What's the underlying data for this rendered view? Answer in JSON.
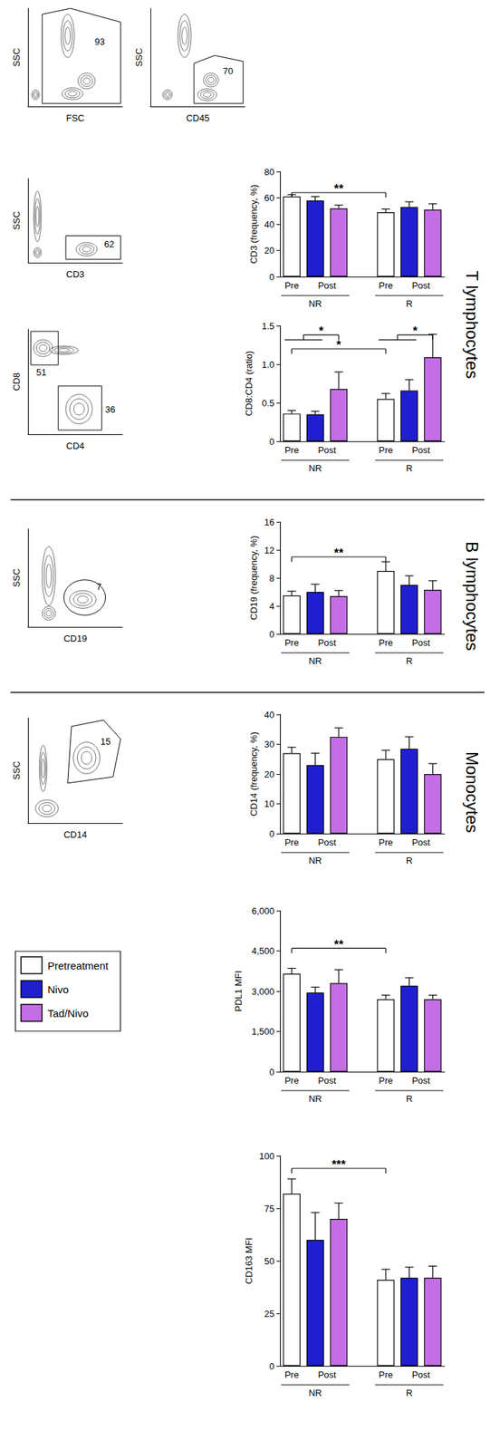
{
  "chart_data": [
    {
      "type": "contour",
      "x_label": "FSC",
      "y_label": "SSC",
      "xlim": [
        0,
        100
      ],
      "ylim": [
        0,
        100
      ],
      "tick_labels": false,
      "populations": [
        {
          "center": [
            42,
            72
          ],
          "size": [
            14,
            44
          ]
        },
        {
          "center": [
            47,
            13
          ],
          "size": [
            22,
            12
          ]
        },
        {
          "center": [
            62,
            26
          ],
          "size": [
            18,
            16
          ]
        },
        {
          "center": [
            8,
            12
          ],
          "size": [
            8,
            10
          ]
        }
      ],
      "gates": [
        {
          "points": [
            [
              15,
              3
            ],
            [
              15,
              94
            ],
            [
              45,
              100
            ],
            [
              98,
              86
            ],
            [
              98,
              3
            ]
          ],
          "label": "93",
          "label_at": [
            76,
            66
          ]
        }
      ]
    },
    {
      "type": "contour",
      "x_label": "CD45",
      "y_label": "SSC",
      "xlim": [
        0,
        100
      ],
      "ylim": [
        0,
        100
      ],
      "tick_labels": false,
      "populations": [
        {
          "center": [
            36,
            72
          ],
          "size": [
            14,
            44
          ]
        },
        {
          "center": [
            60,
            12
          ],
          "size": [
            20,
            12
          ]
        },
        {
          "center": [
            64,
            27
          ],
          "size": [
            16,
            14
          ]
        },
        {
          "center": [
            18,
            12
          ],
          "size": [
            10,
            10
          ]
        }
      ],
      "gates": [
        {
          "points": [
            [
              46,
              3
            ],
            [
              46,
              44
            ],
            [
              68,
              52
            ],
            [
              98,
              46
            ],
            [
              98,
              3
            ]
          ],
          "label": "70",
          "label_at": [
            82,
            36
          ]
        }
      ]
    },
    {
      "type": "contour",
      "section": "T lymphocytes",
      "x_label": "CD3",
      "y_label": "SSC",
      "xlim": [
        0,
        100
      ],
      "ylim": [
        0,
        100
      ],
      "tick_labels": false,
      "populations": [
        {
          "center": [
            10,
            55
          ],
          "size": [
            8,
            60
          ]
        },
        {
          "center": [
            10,
            12
          ],
          "size": [
            8,
            12
          ]
        },
        {
          "center": [
            62,
            16
          ],
          "size": [
            22,
            16
          ]
        }
      ],
      "gates": [
        {
          "points": [
            [
              40,
              4
            ],
            [
              40,
              32
            ],
            [
              98,
              32
            ],
            [
              98,
              4
            ]
          ],
          "label": "62",
          "label_at": [
            86,
            22
          ]
        }
      ]
    },
    {
      "type": "bar",
      "section": "T lymphocytes",
      "y_label": "CD3 (frequency, %)",
      "ylim": [
        0,
        80
      ],
      "yticks": [
        0,
        20,
        40,
        60,
        80
      ],
      "groups": [
        {
          "name": "NR",
          "labels": [
            "Pre",
            "Post"
          ]
        },
        {
          "name": "R",
          "labels": [
            "Pre",
            "Post"
          ]
        }
      ],
      "series": [
        {
          "name": "Pretreatment",
          "color": "#ffffff",
          "values": [
            61,
            49
          ],
          "errors": [
            1.5,
            2.5
          ]
        },
        {
          "name": "Nivo",
          "color": "#1f1fd1",
          "values": [
            58,
            53
          ],
          "errors": [
            3,
            4
          ]
        },
        {
          "name": "Tad/Nivo",
          "color": "#c46ee6",
          "values": [
            52,
            51
          ],
          "errors": [
            2.5,
            4.5
          ]
        }
      ],
      "annotations": [
        {
          "label": "**",
          "from": [
            [
              0,
              0
            ]
          ],
          "to": [
            [
              1,
              0
            ]
          ],
          "y": 64
        }
      ]
    },
    {
      "type": "contour",
      "section": "T lymphocytes",
      "x_label": "CD4",
      "y_label": "CD8",
      "xlim": [
        0,
        100
      ],
      "ylim": [
        0,
        100
      ],
      "tick_labels": false,
      "populations": [
        {
          "center": [
            16,
            82
          ],
          "size": [
            20,
            16
          ]
        },
        {
          "center": [
            38,
            80
          ],
          "size": [
            30,
            8
          ]
        },
        {
          "center": [
            54,
            24
          ],
          "size": [
            28,
            28
          ]
        }
      ],
      "gates": [
        {
          "points": [
            [
              3,
              66
            ],
            [
              3,
              98
            ],
            [
              32,
              98
            ],
            [
              32,
              66
            ]
          ],
          "label": "51",
          "label_at": [
            14,
            59
          ]
        },
        {
          "points": [
            [
              32,
              4
            ],
            [
              32,
              46
            ],
            [
              78,
              46
            ],
            [
              78,
              4
            ]
          ],
          "label": "36",
          "label_at": [
            87,
            24
          ]
        }
      ]
    },
    {
      "type": "bar",
      "section": "T lymphocytes",
      "y_label": "CD8:CD4 (ratio)",
      "ylim": [
        0,
        1.5
      ],
      "yticks": [
        0,
        0.5,
        {
          "value": 1,
          "label": "1.0"
        },
        1.5
      ],
      "groups": [
        {
          "name": "NR",
          "labels": [
            "Pre",
            "Post"
          ]
        },
        {
          "name": "R",
          "labels": [
            "Pre",
            "Post"
          ]
        }
      ],
      "series": [
        {
          "name": "Pretreatment",
          "color": "#ffffff",
          "values": [
            0.36,
            0.55
          ],
          "errors": [
            0.04,
            0.07
          ]
        },
        {
          "name": "Nivo",
          "color": "#1f1fd1",
          "values": [
            0.35,
            0.66
          ],
          "errors": [
            0.04,
            0.14
          ]
        },
        {
          "name": "Tad/Nivo",
          "color": "#c46ee6",
          "values": [
            0.68,
            1.09
          ],
          "errors": [
            0.22,
            0.3
          ]
        }
      ],
      "annotations": [
        {
          "label": "*",
          "from": [
            [
              0,
              0
            ],
            [
              0,
              1
            ]
          ],
          "to": [
            [
              0,
              2
            ]
          ],
          "y": 1.38
        },
        {
          "label": "*",
          "from": [
            [
              0,
              0
            ]
          ],
          "to": [
            [
              1,
              0
            ]
          ],
          "y": 1.2
        },
        {
          "label": "*",
          "from": [
            [
              1,
              0
            ],
            [
              1,
              1
            ]
          ],
          "to": [
            [
              1,
              2
            ]
          ],
          "y": 1.38
        }
      ]
    },
    {
      "type": "contour",
      "section": "B lymphocytes",
      "x_label": "CD19",
      "y_label": "SSC",
      "xlim": [
        0,
        100
      ],
      "ylim": [
        0,
        100
      ],
      "tick_labels": false,
      "populations": [
        {
          "center": [
            22,
            52
          ],
          "size": [
            14,
            60
          ]
        },
        {
          "center": [
            22,
            14
          ],
          "size": [
            14,
            14
          ]
        },
        {
          "center": [
            58,
            28
          ],
          "size": [
            28,
            18
          ]
        }
      ],
      "gates": [
        {
          "center": [
            60,
            30
          ],
          "size": [
            44,
            36
          ],
          "label": "7",
          "label_at": [
            75,
            41
          ]
        }
      ]
    },
    {
      "type": "bar",
      "section": "B lymphocytes",
      "y_label": "CD19 (frequency, %)",
      "ylim": [
        0,
        16
      ],
      "yticks": [
        0,
        4,
        8,
        12,
        16
      ],
      "groups": [
        {
          "name": "NR",
          "labels": [
            "Pre",
            "Post"
          ]
        },
        {
          "name": "R",
          "labels": [
            "Pre",
            "Post"
          ]
        }
      ],
      "series": [
        {
          "name": "Pretreatment",
          "color": "#ffffff",
          "values": [
            5.5,
            9.0
          ],
          "errors": [
            0.6,
            1.3
          ]
        },
        {
          "name": "Nivo",
          "color": "#1f1fd1",
          "values": [
            6.0,
            7.0
          ],
          "errors": [
            1.1,
            1.3
          ]
        },
        {
          "name": "Tad/Nivo",
          "color": "#c46ee6",
          "values": [
            5.4,
            6.3
          ],
          "errors": [
            0.8,
            1.3
          ]
        }
      ],
      "annotations": [
        {
          "label": "**",
          "from": [
            [
              0,
              0
            ]
          ],
          "to": [
            [
              1,
              0
            ]
          ],
          "y": 11
        }
      ]
    },
    {
      "type": "contour",
      "section": "Monocytes",
      "x_label": "CD14",
      "y_label": "SSC",
      "xlim": [
        0,
        100
      ],
      "ylim": [
        0,
        100
      ],
      "tick_labels": false,
      "populations": [
        {
          "center": [
            20,
            14
          ],
          "size": [
            24,
            16
          ]
        },
        {
          "center": [
            62,
            62
          ],
          "size": [
            28,
            30
          ]
        },
        {
          "center": [
            16,
            52
          ],
          "size": [
            8,
            44
          ]
        }
      ],
      "gates": [
        {
          "points": [
            [
              42,
              38
            ],
            [
              46,
              92
            ],
            [
              80,
              98
            ],
            [
              98,
              80
            ],
            [
              90,
              44
            ]
          ],
          "label": "15",
          "label_at": [
            82,
            78
          ]
        }
      ]
    },
    {
      "type": "bar",
      "section": "Monocytes",
      "y_label": "CD14 (frequency, %)",
      "ylim": [
        0,
        40
      ],
      "yticks": [
        0,
        10,
        20,
        30,
        40
      ],
      "groups": [
        {
          "name": "NR",
          "labels": [
            "Pre",
            "Post"
          ]
        },
        {
          "name": "R",
          "labels": [
            "Pre",
            "Post"
          ]
        }
      ],
      "series": [
        {
          "name": "Pretreatment",
          "color": "#ffffff",
          "values": [
            27,
            25
          ],
          "errors": [
            2,
            3
          ]
        },
        {
          "name": "Nivo",
          "color": "#1f1fd1",
          "values": [
            23,
            28.5
          ],
          "errors": [
            4,
            4
          ]
        },
        {
          "name": "Tad/Nivo",
          "color": "#c46ee6",
          "values": [
            32.5,
            20
          ],
          "errors": [
            3,
            3.5
          ]
        }
      ],
      "annotations": []
    },
    {
      "type": "bar",
      "y_label": "PDL1 MFI",
      "ylim": [
        0,
        6000
      ],
      "yticks": [
        0,
        {
          "value": 1500,
          "label": "1,500"
        },
        {
          "value": 3000,
          "label": "3,000"
        },
        {
          "value": 4500,
          "label": "4,500"
        },
        {
          "value": 6000,
          "label": "6,000"
        }
      ],
      "legend": "left",
      "groups": [
        {
          "name": "NR",
          "labels": [
            "Pre",
            "Post"
          ]
        },
        {
          "name": "R",
          "labels": [
            "Pre",
            "Post"
          ]
        }
      ],
      "series": [
        {
          "name": "Pretreatment",
          "color": "#ffffff",
          "values": [
            3650,
            2700
          ],
          "errors": [
            200,
            150
          ]
        },
        {
          "name": "Nivo",
          "color": "#1f1fd1",
          "values": [
            2950,
            3200
          ],
          "errors": [
            200,
            300
          ]
        },
        {
          "name": "Tad/Nivo",
          "color": "#c46ee6",
          "values": [
            3300,
            2700
          ],
          "errors": [
            500,
            150
          ]
        }
      ],
      "annotations": [
        {
          "label": "**",
          "from": [
            [
              0,
              0
            ]
          ],
          "to": [
            [
              1,
              0
            ]
          ],
          "y": 4600
        }
      ]
    },
    {
      "type": "bar",
      "y_label": "CD163 MFI",
      "ylim": [
        0,
        100
      ],
      "yticks": [
        0,
        25,
        50,
        75,
        100
      ],
      "groups": [
        {
          "name": "NR",
          "labels": [
            "Pre",
            "Post"
          ]
        },
        {
          "name": "R",
          "labels": [
            "Pre",
            "Post"
          ]
        }
      ],
      "series": [
        {
          "name": "Pretreatment",
          "color": "#ffffff",
          "values": [
            82,
            41
          ],
          "errors": [
            7,
            5
          ]
        },
        {
          "name": "Nivo",
          "color": "#1f1fd1",
          "values": [
            60,
            42
          ],
          "errors": [
            13,
            5
          ]
        },
        {
          "name": "Tad/Nivo",
          "color": "#c46ee6",
          "values": [
            70,
            42
          ],
          "errors": [
            7.5,
            5.5
          ]
        }
      ],
      "annotations": [
        {
          "label": "***",
          "from": [
            [
              0,
              0
            ]
          ],
          "to": [
            [
              1,
              0
            ]
          ],
          "y": 94
        }
      ]
    }
  ]
}
